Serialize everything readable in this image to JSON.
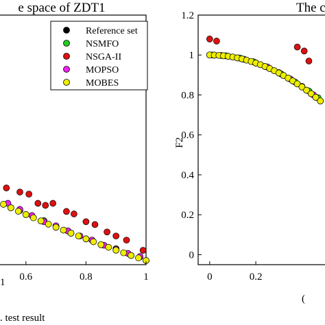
{
  "chart_data": [
    {
      "type": "scatter",
      "title": "e space of ZDT1",
      "xlabel": "1",
      "caption": ". test result",
      "ylabel": "",
      "xlim": [
        0.5,
        1.0
      ],
      "ylim": [
        -0.02,
        1.2
      ],
      "x_ticks": [
        "0.6",
        "0.8",
        "1"
      ],
      "x_tick_values": [
        0.6,
        0.8,
        1.0
      ],
      "y_ticks": [],
      "legend": {
        "placement": "top-right",
        "entries": [
          "Reference set",
          "NSMFO",
          "NSGA-II",
          "MOPSO",
          "MOBES"
        ]
      },
      "series": [
        {
          "name": "Reference set",
          "color": "#000000",
          "x": [
            0.5,
            0.55,
            0.6,
            0.65,
            0.7,
            0.75,
            0.8,
            0.85,
            0.9,
            0.95,
            1.0
          ],
          "y": [
            0.293,
            0.258,
            0.225,
            0.194,
            0.163,
            0.134,
            0.106,
            0.078,
            0.051,
            0.025,
            0.0
          ]
        },
        {
          "name": "NSMFO",
          "color": "#22cc22",
          "x": [
            0.5,
            0.58,
            0.66,
            0.74,
            0.82,
            0.9,
            0.98
          ],
          "y": [
            0.3,
            0.245,
            0.195,
            0.145,
            0.1,
            0.058,
            0.018
          ]
        },
        {
          "name": "NSGA-II",
          "color": "#dd1111",
          "x": [
            0.5,
            0.535,
            0.58,
            0.61,
            0.64,
            0.665,
            0.69,
            0.735,
            0.76,
            0.8,
            0.83,
            0.87,
            0.9,
            0.935,
            0.99
          ],
          "y": [
            0.372,
            0.355,
            0.335,
            0.325,
            0.28,
            0.27,
            0.28,
            0.24,
            0.228,
            0.19,
            0.176,
            0.14,
            0.12,
            0.1,
            0.05
          ]
        },
        {
          "name": "MOPSO",
          "color": "#ee22ee",
          "x": [
            0.5,
            0.54,
            0.58,
            0.62,
            0.66,
            0.7,
            0.74,
            0.78,
            0.82,
            0.86,
            0.9,
            0.94,
            0.98
          ],
          "y": [
            0.31,
            0.28,
            0.25,
            0.22,
            0.19,
            0.17,
            0.145,
            0.12,
            0.1,
            0.075,
            0.055,
            0.035,
            0.02
          ]
        },
        {
          "name": "MOBES",
          "color": "#eeee00",
          "x": [
            0.5,
            0.525,
            0.55,
            0.575,
            0.6,
            0.625,
            0.65,
            0.675,
            0.7,
            0.725,
            0.75,
            0.775,
            0.8,
            0.825,
            0.85,
            0.875,
            0.9,
            0.925,
            0.95,
            0.975,
            1.0
          ],
          "y": [
            0.293,
            0.275,
            0.258,
            0.241,
            0.225,
            0.209,
            0.194,
            0.178,
            0.163,
            0.149,
            0.134,
            0.12,
            0.106,
            0.092,
            0.078,
            0.065,
            0.051,
            0.038,
            0.025,
            0.013,
            0.0
          ]
        }
      ]
    },
    {
      "type": "scatter",
      "title": "The c",
      "xlabel": "(",
      "ylabel": "F2",
      "xlim": [
        -0.05,
        0.5
      ],
      "ylim": [
        -0.05,
        1.2
      ],
      "x_ticks": [
        "0",
        "0.2"
      ],
      "x_tick_values": [
        0.0,
        0.2
      ],
      "y_ticks": [
        "0",
        "0.2",
        "0.4",
        "0.6",
        "0.8",
        "1",
        "1.2"
      ],
      "y_tick_values": [
        0.0,
        0.2,
        0.4,
        0.6,
        0.8,
        1.0,
        1.2
      ],
      "series": [
        {
          "name": "Reference set",
          "color": "#000000",
          "x": [
            0.0,
            0.02,
            0.04,
            0.06,
            0.08,
            0.1,
            0.12,
            0.14,
            0.16,
            0.18,
            0.2,
            0.22,
            0.24,
            0.26,
            0.28,
            0.3,
            0.32,
            0.34,
            0.36,
            0.38,
            0.4,
            0.42,
            0.44,
            0.46,
            0.48
          ],
          "y": [
            1.0,
            0.9996,
            0.9984,
            0.9964,
            0.9936,
            0.99,
            0.9856,
            0.9804,
            0.9744,
            0.9676,
            0.96,
            0.9516,
            0.9424,
            0.9324,
            0.9216,
            0.91,
            0.8976,
            0.8844,
            0.8704,
            0.8556,
            0.84,
            0.8236,
            0.8064,
            0.7884,
            0.7696
          ]
        },
        {
          "name": "NSMFO",
          "color": "#22cc22",
          "x": [
            0.01,
            0.07,
            0.13,
            0.19,
            0.25,
            0.31,
            0.37,
            0.43,
            0.47
          ],
          "y": [
            1.0,
            0.996,
            0.985,
            0.966,
            0.94,
            0.905,
            0.865,
            0.82,
            0.786
          ]
        },
        {
          "name": "NSGA-II",
          "color": "#dd1111",
          "x": [
            0.0,
            0.03,
            0.38,
            0.41,
            0.43
          ],
          "y": [
            1.08,
            1.07,
            1.04,
            1.02,
            0.97
          ]
        },
        {
          "name": "MOPSO",
          "color": "#ee22ee",
          "x": [
            0.0,
            0.05,
            0.1,
            0.15,
            0.2,
            0.25,
            0.3,
            0.35,
            0.4,
            0.45
          ],
          "y": [
            1.0,
            0.998,
            0.99,
            0.978,
            0.96,
            0.94,
            0.912,
            0.88,
            0.843,
            0.8
          ]
        },
        {
          "name": "MOBES",
          "color": "#eeee00",
          "x": [
            0.0,
            0.02,
            0.04,
            0.06,
            0.08,
            0.1,
            0.12,
            0.14,
            0.16,
            0.18,
            0.2,
            0.22,
            0.24,
            0.26,
            0.28,
            0.3,
            0.32,
            0.34,
            0.36,
            0.38,
            0.4,
            0.42,
            0.44,
            0.46,
            0.48
          ],
          "y": [
            1.0,
            0.9996,
            0.9984,
            0.9964,
            0.9936,
            0.99,
            0.9856,
            0.9804,
            0.9744,
            0.9676,
            0.96,
            0.9516,
            0.9424,
            0.9324,
            0.9216,
            0.91,
            0.8976,
            0.8844,
            0.8704,
            0.8556,
            0.84,
            0.8236,
            0.8064,
            0.7884,
            0.7696
          ]
        }
      ]
    }
  ]
}
